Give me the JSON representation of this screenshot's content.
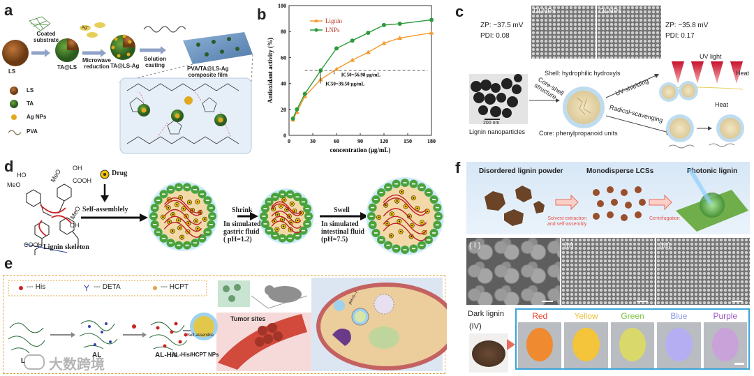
{
  "figure_labels": {
    "a": "a",
    "b": "b",
    "c": "c",
    "d": "d",
    "e": "e",
    "f": "f"
  },
  "panel_a": {
    "ls": "LS",
    "coated_substrate": "Coated\nsubstrate",
    "ta_ls": "TA@LS",
    "microwave": "Microwave\nreduction",
    "ta_ls_ag": "TA@LS-Ag",
    "solution": "Solution\ncasting",
    "film": "PVA/TA@LS-Ag\ncomposite film",
    "ag": "Ag⁺",
    "legend": [
      {
        "label": "LS",
        "color": "#8a4b1a"
      },
      {
        "label": "TA",
        "color": "#2f6e2a"
      },
      {
        "label": "Ag NPs",
        "color": "#d8a21e"
      },
      {
        "label": "PVA",
        "color": "#7a6a50"
      }
    ]
  },
  "chart_data": {
    "type": "line",
    "title": "",
    "xlabel": "concentration (μg/mL)",
    "ylabel": "Antioxidant activity (%)",
    "x": [
      5,
      10,
      20,
      40,
      60,
      80,
      100,
      120,
      140,
      180
    ],
    "xticks": [
      0,
      30,
      60,
      90,
      120,
      150,
      180
    ],
    "yticks": [
      0,
      20,
      40,
      60,
      80,
      100
    ],
    "xlim": [
      0,
      180
    ],
    "ylim": [
      0,
      100
    ],
    "series": [
      {
        "name": "Lignin",
        "color": "#f39a2e",
        "values": [
          12,
          18,
          30,
          43,
          51,
          58,
          64,
          71,
          75,
          79
        ]
      },
      {
        "name": "LNPs",
        "color": "#2d9a3a",
        "values": [
          13,
          20,
          32,
          50,
          67,
          73,
          79,
          85,
          86,
          89
        ]
      }
    ],
    "reference_y": 50,
    "annotations": [
      "IC50=56.98 μg/mL",
      "IC50=39.50 μg/mL"
    ],
    "legend_position": "top-left",
    "grid": false
  },
  "panel_c": {
    "zp1": "ZP: −37.5 mV",
    "pdi1": "PDI: 0.08",
    "zp2": "ZP: −35.8 mV",
    "pdi2": "PDI: 0.17",
    "dlnps": "DLNPs",
    "olnps": "OLNPs",
    "shell": "Shell: hydrophilic hydroxyls",
    "core_shell": "Core-shell\nstructure",
    "core": "Core: phenylpropanoid units",
    "lignin_np": "Lignin nanoparticles",
    "scale": "200 nm",
    "uv_light": "UV light",
    "uv_shielding": "UV-shielding",
    "heat": "Heat",
    "heat2": "Heat",
    "radical": "Radical-scavenging"
  },
  "panel_d": {
    "meo1": "MeO",
    "oh1": "OH",
    "ho": "HO",
    "meo2": "MeO",
    "cooh1": "COOH",
    "meo3": "MeO",
    "oh2": "OH",
    "cooh2": "COOH",
    "drug": "Drug",
    "self_assembly": "Self-assemblely",
    "skeleton": "Lignin skeleton",
    "shrink": "Shrink",
    "gastric": "In simulated\ngastric fluid\n( pH=1.2)",
    "swell": "Swell",
    "intestinal": "In simulated\nintestinal fluid\n(pH=7.5)"
  },
  "panel_e": {
    "legend": [
      {
        "label": "--- His",
        "sym": "✱"
      },
      {
        "label": "--- DETA",
        "sym": "Y"
      },
      {
        "label": "--- HCPT",
        "sym": "✱"
      }
    ],
    "l": "L",
    "al": "AL",
    "alhis": "AL-His",
    "self": "Self-assemble",
    "np": "AL-His/HCPT NPs",
    "tumor": "Tumor sites",
    "ph": "pH=5–7"
  },
  "panel_f": {
    "step1": "Disordered lignin powder",
    "step2": "Monodisperse LCSs",
    "step3": "Photonic lignin",
    "arrow1": "Solvent extraction\nand self-assembly",
    "arrow2": "Centrifugation",
    "i": "( I )",
    "ii": "(II)",
    "iii": "(III)",
    "iv": "(IV)",
    "dark": "Dark lignin",
    "colors": [
      {
        "label": "Red",
        "text": "#e8432a",
        "fill": "#f08a30"
      },
      {
        "label": "Yellow",
        "text": "#e9c23a",
        "fill": "#f4c53a"
      },
      {
        "label": "Green",
        "text": "#7ec243",
        "fill": "#d9d86a"
      },
      {
        "label": "Blue",
        "text": "#8b9be6",
        "fill": "#b6aef2"
      },
      {
        "label": "Purple",
        "text": "#9b54c6",
        "fill": "#c9a2da"
      }
    ]
  },
  "watermark": "大数跨境"
}
